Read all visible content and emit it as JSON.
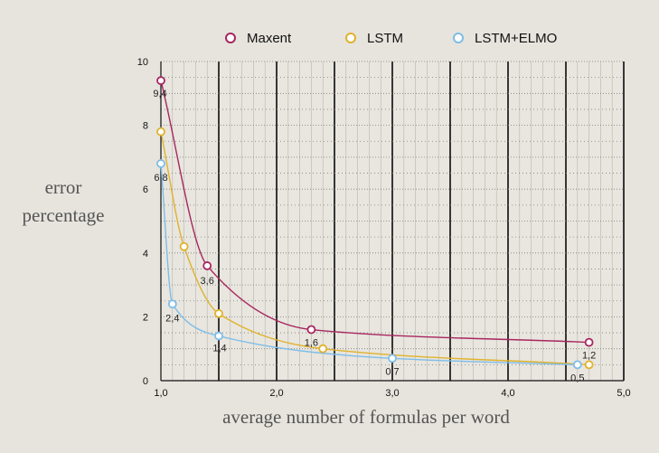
{
  "chart_data": {
    "type": "line",
    "title": "",
    "xlabel": "average number of formulas per word",
    "ylabel_lines": [
      "error",
      "percentage"
    ],
    "xlim": [
      1.0,
      5.0
    ],
    "ylim": [
      0,
      10
    ],
    "x_ticks": [
      1.0,
      2.0,
      3.0,
      4.0,
      5.0
    ],
    "x_tick_labels": [
      "1,0",
      "2,0",
      "3,0",
      "4,0",
      "5,0"
    ],
    "y_ticks": [
      0,
      2,
      4,
      6,
      8,
      10
    ],
    "y_tick_labels": [
      "0",
      "2",
      "4",
      "6",
      "8",
      "10"
    ],
    "grid": true,
    "legend_position": "top",
    "series": [
      {
        "name": "Maxent",
        "color": "#a8265f",
        "points": [
          {
            "x": 1.0,
            "y": 9.4
          },
          {
            "x": 1.4,
            "y": 3.6
          },
          {
            "x": 2.3,
            "y": 1.6
          },
          {
            "x": 4.7,
            "y": 1.2
          }
        ],
        "labels": [
          {
            "text": "9,4",
            "point_index": 0
          },
          {
            "text": "3,6",
            "point_index": 1
          },
          {
            "text": "1,6",
            "point_index": 2
          },
          {
            "text": "1,2",
            "point_index": 3
          }
        ]
      },
      {
        "name": "LSTM",
        "color": "#e0b22d",
        "points": [
          {
            "x": 1.0,
            "y": 7.8
          },
          {
            "x": 1.2,
            "y": 4.2
          },
          {
            "x": 1.5,
            "y": 2.1
          },
          {
            "x": 2.4,
            "y": 1.0
          },
          {
            "x": 4.7,
            "y": 0.5
          }
        ],
        "labels": []
      },
      {
        "name": "LSTM+ELMO",
        "color": "#7ebde8",
        "points": [
          {
            "x": 1.0,
            "y": 6.8
          },
          {
            "x": 1.1,
            "y": 2.4
          },
          {
            "x": 1.5,
            "y": 1.4
          },
          {
            "x": 3.0,
            "y": 0.7
          },
          {
            "x": 4.6,
            "y": 0.5
          }
        ],
        "labels": [
          {
            "text": "6,8",
            "point_index": 0
          },
          {
            "text": "2,4",
            "point_index": 1
          },
          {
            "text": "1,4",
            "point_index": 2
          },
          {
            "text": "0,7",
            "point_index": 3
          },
          {
            "text": "0,5",
            "point_index": 4
          }
        ]
      }
    ]
  }
}
